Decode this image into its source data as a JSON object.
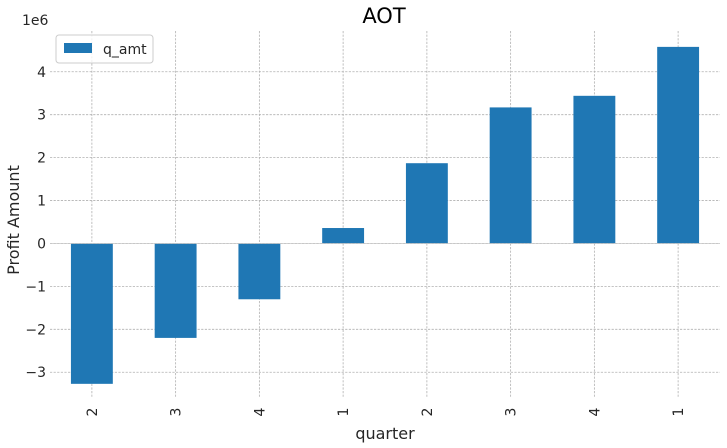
{
  "chart_data": {
    "type": "bar",
    "title": "AOT",
    "xlabel": "quarter",
    "ylabel": "Profit Amount",
    "y_offset_label": "1e6",
    "y_multiplier": 1000000,
    "categories": [
      "2",
      "3",
      "4",
      "1",
      "2",
      "3",
      "4",
      "1"
    ],
    "series": [
      {
        "name": "q_amt",
        "color": "#1f77b4",
        "values": [
          -3270000,
          -2200000,
          -1300000,
          360000,
          1870000,
          3170000,
          3440000,
          4580000
        ]
      }
    ],
    "ylim": [
      -3600000,
      4950000
    ],
    "yticks": [
      -3000000,
      -2000000,
      -1000000,
      0,
      1000000,
      2000000,
      3000000,
      4000000
    ],
    "ytick_labels": [
      "−3",
      "−2",
      "−1",
      "0",
      "1",
      "2",
      "3",
      "4"
    ],
    "grid": true,
    "legend_position": "top-left"
  }
}
